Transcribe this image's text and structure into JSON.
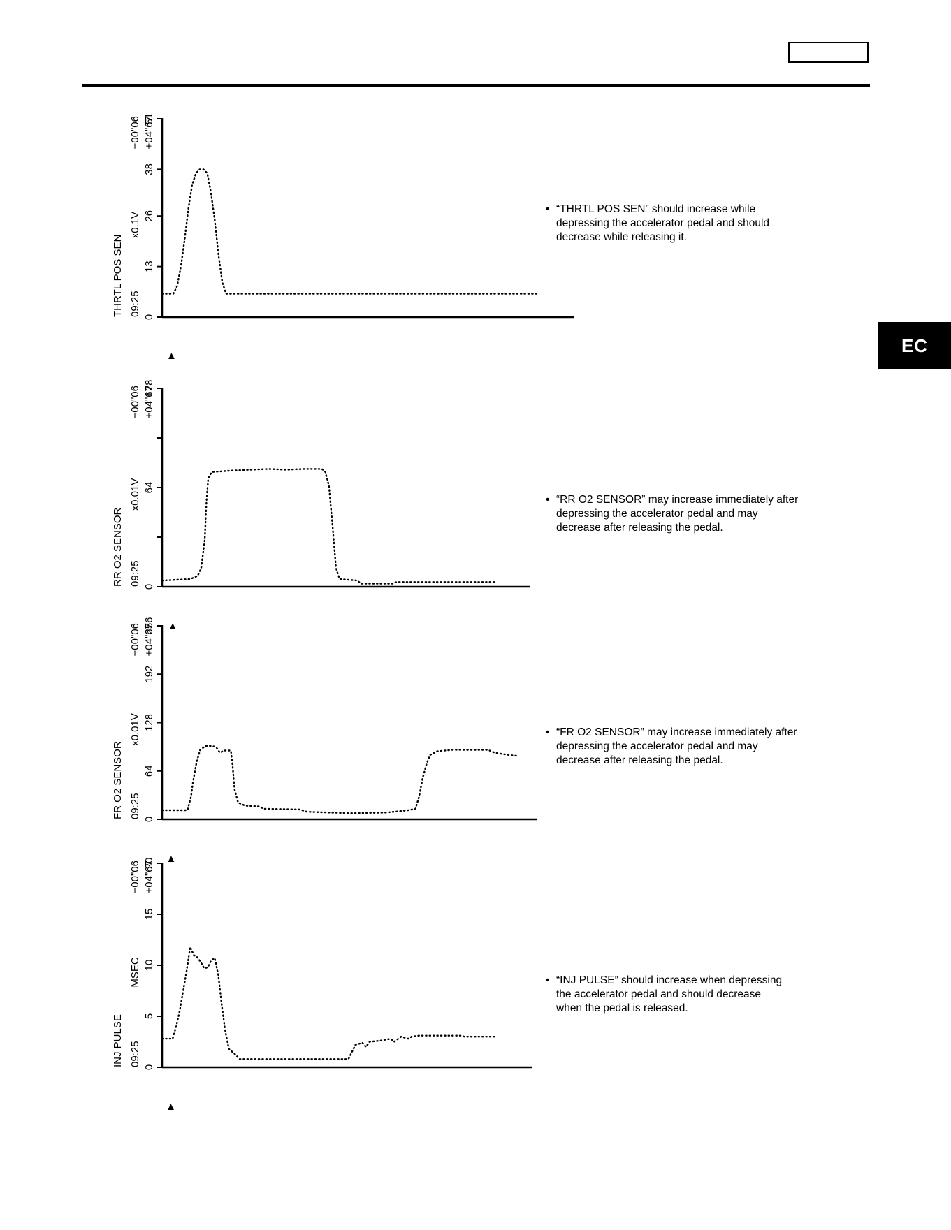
{
  "page": {
    "tab_label": "EC",
    "header_box_text": ""
  },
  "notes": [
    {
      "bullet": "•",
      "lines": [
        "“THRTL POS SEN” should increase while",
        "depressing the accelerator pedal and should",
        "decrease while releasing it."
      ]
    },
    {
      "bullet": "•",
      "lines": [
        "“RR O2 SENSOR” may increase immediately after",
        "depressing the accelerator pedal and may",
        "decrease after releasing the pedal."
      ]
    },
    {
      "bullet": "•",
      "lines": [
        "“FR O2 SENSOR” may increase immediately after",
        "depressing the accelerator pedal and may",
        "decrease after releasing the pedal."
      ]
    },
    {
      "bullet": "•",
      "lines": [
        "“INJ PULSE” should increase when depressing",
        "the accelerator pedal and should decrease",
        "when the pedal is released."
      ]
    }
  ],
  "chart_data": [
    {
      "type": "line",
      "style": "dotted",
      "label_name": "THRTL POS SEN",
      "label_unit": "x0.1V",
      "label_time": "09:25",
      "label_range_top": "−00\"06",
      "label_range_bottom": "+04\"67",
      "yticks": [
        "0",
        "13",
        "26",
        "38",
        "51"
      ],
      "tick_values": [
        0,
        13,
        26,
        38,
        51
      ],
      "ylim": [
        0,
        51
      ],
      "xlim": [
        0,
        100
      ],
      "trigger_marker": "▲",
      "trigger_x": 2.5,
      "points": [
        [
          0,
          6
        ],
        [
          3,
          6
        ],
        [
          4,
          8
        ],
        [
          5,
          13
        ],
        [
          6,
          20
        ],
        [
          7,
          28
        ],
        [
          8,
          34
        ],
        [
          9,
          37
        ],
        [
          10,
          38
        ],
        [
          11,
          38
        ],
        [
          12,
          37
        ],
        [
          13,
          32
        ],
        [
          14,
          25
        ],
        [
          15,
          16
        ],
        [
          16,
          9
        ],
        [
          17,
          6
        ],
        [
          20,
          6
        ],
        [
          100,
          6
        ]
      ]
    },
    {
      "type": "line",
      "style": "dotted",
      "label_name": "RR O2 SENSOR",
      "label_unit": "x0.01V",
      "label_time": "09:25",
      "label_range_top": "−00\"06",
      "label_range_bottom": "+04\"67",
      "yticks": [
        "0",
        "",
        "64",
        "",
        "128"
      ],
      "tick_values": [
        0,
        32,
        64,
        96,
        128
      ],
      "ylim": [
        0,
        128
      ],
      "xlim": [
        0,
        100
      ],
      "trigger_marker": "▲",
      "trigger_x": 3,
      "points": [
        [
          0,
          4
        ],
        [
          8,
          5
        ],
        [
          10,
          7
        ],
        [
          11,
          12
        ],
        [
          12,
          30
        ],
        [
          12.5,
          55
        ],
        [
          13,
          70
        ],
        [
          14,
          74
        ],
        [
          20,
          75
        ],
        [
          25,
          75.5
        ],
        [
          30,
          76
        ],
        [
          35,
          75.5
        ],
        [
          40,
          76
        ],
        [
          45,
          76
        ],
        [
          46,
          74
        ],
        [
          47,
          65
        ],
        [
          48,
          40
        ],
        [
          49,
          12
        ],
        [
          50,
          5
        ],
        [
          55,
          4
        ],
        [
          56,
          2
        ],
        [
          60,
          2
        ],
        [
          65,
          2
        ],
        [
          66,
          3
        ],
        [
          75,
          3
        ],
        [
          85,
          3
        ],
        [
          94,
          3
        ]
      ]
    },
    {
      "type": "line",
      "style": "dotted",
      "label_name": "FR O2 SENSOR",
      "label_unit": "x0.01V",
      "label_time": "09:25",
      "label_range_top": "−00\"06",
      "label_range_bottom": "+04\"67",
      "yticks": [
        "0",
        "64",
        "128",
        "192",
        "256"
      ],
      "tick_values": [
        0,
        64,
        128,
        192,
        256
      ],
      "ylim": [
        0,
        256
      ],
      "xlim": [
        0,
        100
      ],
      "trigger_marker": "▲",
      "trigger_x": 2.5,
      "points": [
        [
          0,
          12
        ],
        [
          7,
          12
        ],
        [
          8,
          30
        ],
        [
          8.5,
          48
        ],
        [
          9.5,
          75
        ],
        [
          10.5,
          92
        ],
        [
          12,
          97
        ],
        [
          14,
          97
        ],
        [
          15,
          95
        ],
        [
          16,
          88
        ],
        [
          17,
          91
        ],
        [
          19,
          91
        ],
        [
          19.5,
          70
        ],
        [
          20,
          40
        ],
        [
          21,
          22
        ],
        [
          23,
          18
        ],
        [
          27,
          17
        ],
        [
          28,
          14
        ],
        [
          38,
          13
        ],
        [
          40,
          10
        ],
        [
          52,
          8
        ],
        [
          62,
          9
        ],
        [
          68,
          12
        ],
        [
          70,
          14
        ],
        [
          71,
          30
        ],
        [
          72,
          55
        ],
        [
          73,
          72
        ],
        [
          74,
          85
        ],
        [
          76,
          90
        ],
        [
          80,
          92
        ],
        [
          90,
          92
        ],
        [
          92,
          88
        ],
        [
          96,
          85
        ],
        [
          98,
          84
        ]
      ]
    },
    {
      "type": "line",
      "style": "dotted",
      "label_name": "INJ PULSE",
      "label_unit": "MSEC",
      "label_time": "09:25",
      "label_range_top": "−00\"06",
      "label_range_bottom": "+04\"67",
      "yticks": [
        "0",
        "5",
        "10",
        "15",
        "20"
      ],
      "tick_values": [
        0,
        5,
        10,
        15,
        20
      ],
      "ylim": [
        0,
        20
      ],
      "xlim": [
        0,
        100
      ],
      "trigger_marker": "▲",
      "trigger_x": 2.5,
      "points": [
        [
          0,
          2.8
        ],
        [
          3,
          2.8
        ],
        [
          4,
          4
        ],
        [
          5,
          5.5
        ],
        [
          6,
          7.5
        ],
        [
          7,
          9.5
        ],
        [
          8,
          11.8
        ],
        [
          9,
          11
        ],
        [
          10,
          10.8
        ],
        [
          11,
          10.3
        ],
        [
          12,
          9.7
        ],
        [
          13,
          9.8
        ],
        [
          14,
          10.5
        ],
        [
          15,
          10.7
        ],
        [
          16,
          9
        ],
        [
          17,
          6
        ],
        [
          18,
          3.5
        ],
        [
          19,
          1.8
        ],
        [
          20,
          1.5
        ],
        [
          21,
          1.2
        ],
        [
          22,
          0.8
        ],
        [
          40,
          0.8
        ],
        [
          53,
          0.8
        ],
        [
          54,
          1.5
        ],
        [
          55,
          2.2
        ],
        [
          57,
          2.4
        ],
        [
          58,
          2
        ],
        [
          59,
          2.5
        ],
        [
          62,
          2.6
        ],
        [
          65,
          2.8
        ],
        [
          66,
          2.5
        ],
        [
          68,
          3
        ],
        [
          70,
          2.8
        ],
        [
          71,
          3
        ],
        [
          73,
          3.1
        ],
        [
          80,
          3.1
        ],
        [
          85,
          3.1
        ],
        [
          86,
          3
        ],
        [
          92,
          3
        ],
        [
          95,
          3
        ]
      ]
    }
  ]
}
